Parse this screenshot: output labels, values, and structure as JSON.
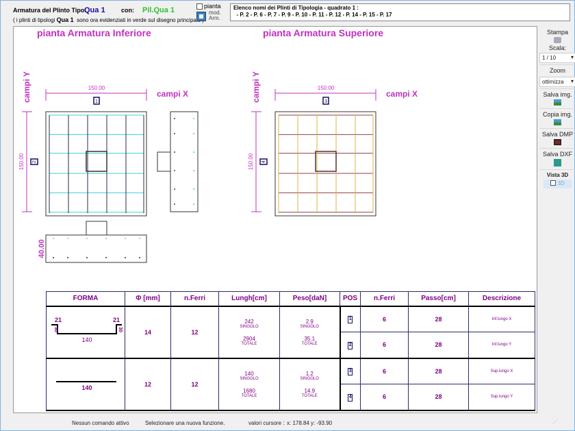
{
  "header": {
    "tipo_label": "Armatura del Plinto Tipo:",
    "tipo_value": "Qua 1",
    "con_label": "con:",
    "con_value": "Pil.Qua 1",
    "note_pre": "( i plinti di tipologi",
    "note_value": "Qua 1",
    "note_post": "sono ora evidenziati in verde sul disegno principale )",
    "pianta_checkbox": "pianta",
    "mod_arm_label1": "mod.",
    "mod_arm_label2": "Arm.",
    "elenco_title": "Elenco nomi dei Plinti di Tipologia  - quadrato 1 :",
    "elenco_list": "- P. 2 - P. 6 - P. 7 - P. 9 - P. 10 - P. 11 - P. 12 - P. 14 - P. 15 - P. 17"
  },
  "drawing": {
    "title_inf": "pianta Armatura Inferiore",
    "title_sup": "pianta Armatura Superiore",
    "campi_x": "campi X",
    "campi_y": "campi Y",
    "dim_x": "150.00",
    "dim_y": "150.00",
    "dim_h": "40.00",
    "pos": [
      "1",
      "2",
      "3",
      "4"
    ],
    "colors": {
      "inf_x": "#2a2a4a",
      "inf_y": "#40d0d8",
      "sup_x": "#e0b040",
      "sup_y": "#904040",
      "label": "#c030c0"
    }
  },
  "sidebar": {
    "stampa": "Stampa",
    "scala_label": "Scala:",
    "scala_value": "1 / 10",
    "zoom_label": "Zoom",
    "zoom_value": "ottimizza",
    "salva_img": "Salva img.",
    "copia_img": "Copia img.",
    "salva_dmp": "Salva DMP",
    "salva_dxf": "Salva DXF",
    "vista3d": "Vista 3D",
    "check3d": "3D"
  },
  "table": {
    "headers": [
      "FORMA",
      "Φ [mm]",
      "n.Ferri",
      "Lungh[cm]",
      "Peso[daN]",
      "POS",
      "n.Ferri",
      "Passo[cm]",
      "Descrizione"
    ],
    "groups": [
      {
        "shape": {
          "hook_left": "21",
          "hook_right": "21",
          "side_left": "30",
          "side_right": "30",
          "length": "140"
        },
        "diam": "14",
        "nferri": "12",
        "lungh_singolo": "242",
        "lungh_totale": "2904",
        "peso_singolo": "2.9",
        "peso_totale": "35.1",
        "rows": [
          {
            "pos": "1",
            "nferri": "6",
            "passo": "28",
            "desc": "Inf.lungo X"
          },
          {
            "pos": "2",
            "nferri": "6",
            "passo": "28",
            "desc": "Inf.lungo Y"
          }
        ]
      },
      {
        "shape": {
          "length": "140"
        },
        "diam": "12",
        "nferri": "12",
        "lungh_singolo": "140",
        "lungh_totale": "1680",
        "peso_singolo": "1.2",
        "peso_totale": "14.9",
        "rows": [
          {
            "pos": "3",
            "nferri": "6",
            "passo": "28",
            "desc": "Sup.lungo X"
          },
          {
            "pos": "4",
            "nferri": "6",
            "passo": "28",
            "desc": "Sup.lungo Y"
          }
        ]
      }
    ],
    "singolo": "SINGOLO",
    "totale": "TOTALE"
  },
  "status": {
    "comando": "Nessun comando attivo",
    "funzione": "Selezionare una nuova funzione.",
    "cursore_label": "valori cursore :",
    "x": "x: 178.84",
    "y": "y: -93.90"
  }
}
